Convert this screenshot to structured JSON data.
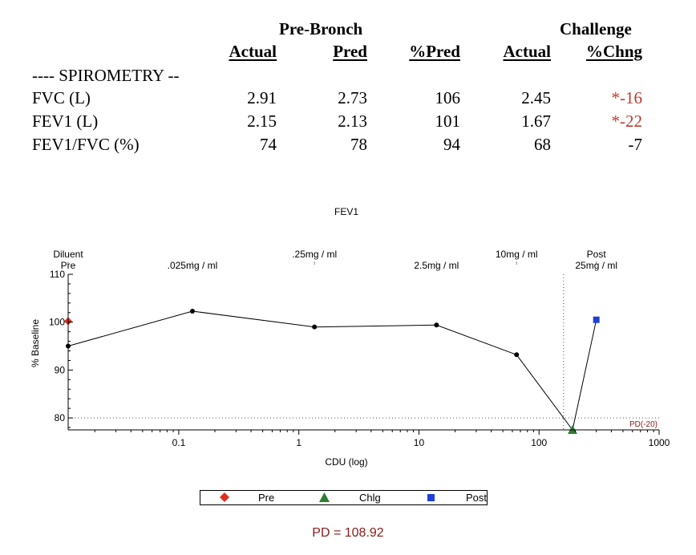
{
  "table": {
    "group_prebronch": "Pre-Bronch",
    "group_challenge": "Challenge",
    "headers": [
      "Actual",
      "Pred",
      "%Pred",
      "Actual",
      "%Chng"
    ],
    "section_title": "---- SPIROMETRY --",
    "rows": [
      {
        "label": "FVC (L)",
        "actual": "2.91",
        "pred": "2.73",
        "pct_pred": "106",
        "ch_actual": "2.45",
        "pct_chng": "*-16",
        "chng_color": "#c0392b"
      },
      {
        "label": "FEV1 (L)",
        "actual": "2.15",
        "pred": "2.13",
        "pct_pred": "101",
        "ch_actual": "1.67",
        "pct_chng": "*-22",
        "chng_color": "#c0392b"
      },
      {
        "label": "FEV1/FVC (%)",
        "actual": "74",
        "pred": "78",
        "pct_pred": "94",
        "ch_actual": "68",
        "pct_chng": "-7",
        "chng_color": "#000000"
      }
    ]
  },
  "chart_data": {
    "type": "line",
    "title": "FEV1",
    "xlabel": "CDU (log)",
    "ylabel": "% Baseline",
    "xscale": "log",
    "xlim": [
      0.012,
      1000
    ],
    "ylim": [
      77.5,
      110
    ],
    "x_ticks": [
      0.1,
      1,
      10,
      100,
      1000
    ],
    "x_tick_labels": [
      "0.1",
      "1",
      "10",
      "100",
      "1000"
    ],
    "y_ticks": [
      80,
      90,
      100,
      110
    ],
    "y_tick_labels": [
      "80",
      "90",
      "100",
      "110"
    ],
    "threshold_label": "PD(-20)",
    "threshold_y": 80,
    "pd_x": 160,
    "dose_labels": [
      {
        "x": 0.012,
        "top": "Diluent",
        "bottom": "Pre"
      },
      {
        "x": 0.13,
        "top": "",
        "bottom": ".025mg / ml"
      },
      {
        "x": 1.35,
        "top": ".25mg / ml",
        "bottom": ""
      },
      {
        "x": 14,
        "top": "",
        "bottom": "2.5mg / ml"
      },
      {
        "x": 65,
        "top": "10mg / ml",
        "bottom": ""
      },
      {
        "x": 300,
        "top": "Post",
        "bottom": "25mg / ml"
      }
    ],
    "series": [
      {
        "name": "",
        "points": [
          [
            0.012,
            95
          ],
          [
            0.13,
            102.3
          ],
          [
            1.35,
            99
          ],
          [
            14,
            99.4
          ],
          [
            65,
            93.2
          ],
          [
            190,
            77.5
          ]
        ]
      },
      {
        "name": "",
        "points": [
          [
            190,
            77.5
          ],
          [
            300,
            100.5
          ]
        ]
      }
    ],
    "markers": [
      {
        "series": "Pre",
        "shape": "diamond",
        "color": "#e03020",
        "x": 0.012,
        "y": 100.2
      },
      {
        "series": "Chlg",
        "shape": "triangle",
        "color": "#2e7d32",
        "x": 190,
        "y": 77.5
      },
      {
        "series": "Post",
        "shape": "square",
        "color": "#1f3fd6",
        "x": 300,
        "y": 100.5
      }
    ],
    "legend": [
      {
        "name": "Pre",
        "shape": "diamond",
        "color": "#e03020"
      },
      {
        "name": "Chlg",
        "shape": "triangle",
        "color": "#2e7d32"
      },
      {
        "name": "Post",
        "shape": "square",
        "color": "#1f3fd6"
      }
    ],
    "legend_position": "bottom",
    "result_text": "PD = 108.92"
  }
}
